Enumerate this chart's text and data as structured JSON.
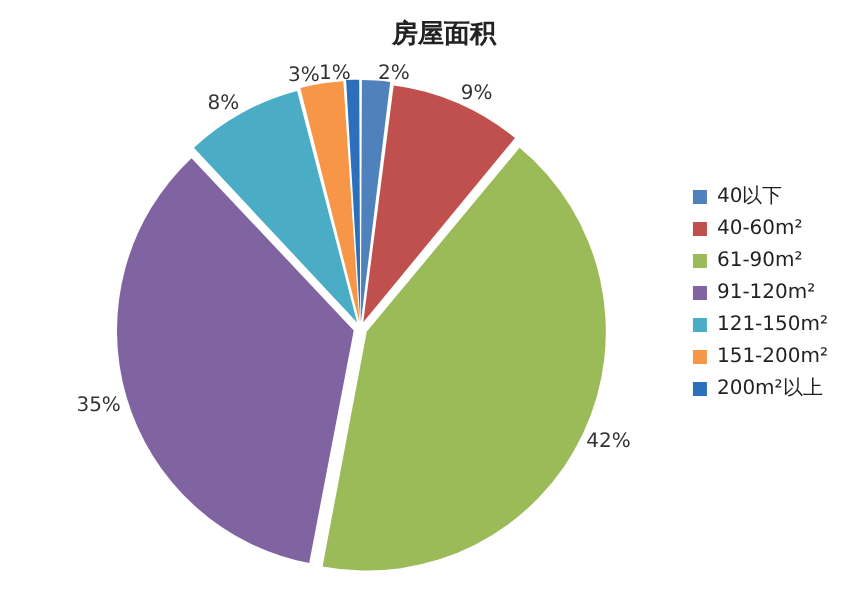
{
  "chart_data": {
    "type": "pie",
    "title": "房屋面积",
    "categories": [
      "40以下",
      "40-60m²",
      "61-90m²",
      "91-120m²",
      "121-150m²",
      "151-200m²",
      "200m²以上"
    ],
    "values": [
      2,
      9,
      42,
      35,
      8,
      3,
      1
    ],
    "colors": [
      "#4f81bd",
      "#c0504d",
      "#9bbb59",
      "#8064a2",
      "#4bacc6",
      "#f79646",
      "#2c6fbb"
    ],
    "value_labels": [
      "2%",
      "9%",
      "42%",
      "35%",
      "8%",
      "3%",
      "1%"
    ],
    "legend": "right"
  }
}
